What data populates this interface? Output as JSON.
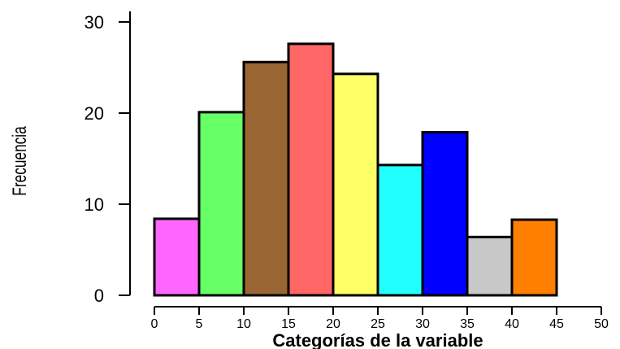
{
  "chart_data": {
    "type": "bar",
    "subtype": "histogram",
    "xlabel": "Categorías de la variable",
    "ylabel": "Frecuencia",
    "xlim": [
      0,
      50
    ],
    "ylim": [
      0,
      30
    ],
    "x_ticks": [
      0,
      5,
      10,
      15,
      20,
      25,
      30,
      35,
      40,
      45,
      50
    ],
    "y_ticks": [
      0,
      10,
      20,
      30
    ],
    "grid": false,
    "bins": [
      {
        "start": 0,
        "end": 5,
        "value": 8.4,
        "color": "#ff66ff"
      },
      {
        "start": 5,
        "end": 10,
        "value": 20.1,
        "color": "#66ff66"
      },
      {
        "start": 10,
        "end": 15,
        "value": 25.6,
        "color": "#996633"
      },
      {
        "start": 15,
        "end": 20,
        "value": 27.6,
        "color": "#ff6666"
      },
      {
        "start": 20,
        "end": 25,
        "value": 24.3,
        "color": "#ffff66"
      },
      {
        "start": 25,
        "end": 30,
        "value": 14.3,
        "color": "#22ffff"
      },
      {
        "start": 30,
        "end": 35,
        "value": 17.9,
        "color": "#0000ff"
      },
      {
        "start": 35,
        "end": 40,
        "value": 6.4,
        "color": "#c8c8c8"
      },
      {
        "start": 40,
        "end": 45,
        "value": 8.3,
        "color": "#ff8000"
      }
    ]
  }
}
